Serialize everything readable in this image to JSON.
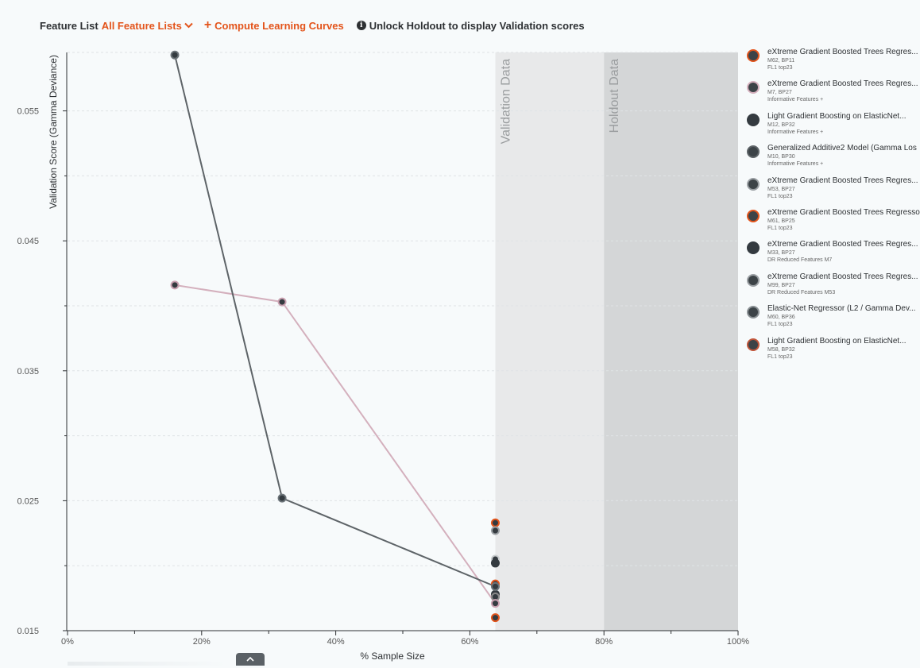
{
  "toolbar": {
    "feature_list_label": "Feature List",
    "feature_list_value": "All Feature Lists",
    "compute_label": "Compute Learning Curves",
    "unlock_label": "Unlock Holdout to display Validation scores"
  },
  "chart_data": {
    "type": "line",
    "ylabel": "Validation Score (Gamma Deviance)",
    "xlabel": "% Sample Size",
    "x_ticks": [
      "0%",
      "20%",
      "40%",
      "60%",
      "80%",
      "100%"
    ],
    "y_ticks": [
      "0.015",
      "0.025",
      "0.035",
      "0.045",
      "0.055"
    ],
    "xlim": [
      0,
      100
    ],
    "ylim": [
      0.015,
      0.0595
    ],
    "regions": [
      {
        "label": "Validation Data",
        "from": 63.8,
        "to": 80,
        "color": "#e8e9ea"
      },
      {
        "label": "Holdout Data",
        "from": 80,
        "to": 100,
        "color": "#d4d6d7"
      }
    ],
    "series": [
      {
        "name": "M7",
        "line_color": "#d4b0bd",
        "ring": "#c9a0b0",
        "points": [
          [
            16,
            0.0416
          ],
          [
            32,
            0.0403
          ],
          [
            63.8,
            0.0171
          ]
        ]
      },
      {
        "name": "M12",
        "line_color": "#5e6468",
        "ring": "#6b7378",
        "points": [
          [
            16,
            0.0593
          ],
          [
            32,
            0.0252
          ],
          [
            63.8,
            0.0184
          ]
        ]
      }
    ],
    "endpoints": [
      {
        "x": 63.8,
        "y": 0.0233,
        "ring": "#e3541b"
      },
      {
        "x": 63.8,
        "y": 0.0227,
        "ring": "#9a9fa3"
      },
      {
        "x": 63.8,
        "y": 0.0205,
        "ring": "#c8ccce"
      },
      {
        "x": 63.8,
        "y": 0.0202,
        "ring": "#343b40"
      },
      {
        "x": 63.8,
        "y": 0.0186,
        "ring": "#e3541b"
      },
      {
        "x": 63.8,
        "y": 0.0178,
        "ring": "#343b40"
      },
      {
        "x": 63.8,
        "y": 0.0176,
        "ring": "#888"
      },
      {
        "x": 63.8,
        "y": 0.016,
        "ring": "#e3541b"
      }
    ]
  },
  "legend": [
    {
      "title": "eXtreme Gradient Boosted Trees Regres...",
      "sub1": "M62, BP11",
      "sub2": "FL1 top23",
      "ring": "#e3541b",
      "fill": "#3c4347"
    },
    {
      "title": "eXtreme Gradient Boosted Trees Regres...",
      "sub1": "M7, BP27",
      "sub2": "Informative Features +",
      "ring": "#d4b0bd",
      "fill": "#3c4347"
    },
    {
      "title": "Light Gradient Boosting on ElasticNet...",
      "sub1": "M12, BP32",
      "sub2": "Informative Features +",
      "ring": "#343b40",
      "fill": "#343b40"
    },
    {
      "title": "Generalized Additive2 Model (Gamma Los",
      "sub1": "M10, BP30",
      "sub2": "Informative Features +",
      "ring": "#5e6468",
      "fill": "#3c4347"
    },
    {
      "title": "eXtreme Gradient Boosted Trees Regres...",
      "sub1": "M53, BP27",
      "sub2": "FL1 top23",
      "ring": "#9a9fa3",
      "fill": "#3c4347"
    },
    {
      "title": "eXtreme Gradient Boosted Trees Regresso",
      "sub1": "M61, BP25",
      "sub2": "FL1 top23",
      "ring": "#e3541b",
      "fill": "#3c4347"
    },
    {
      "title": "eXtreme Gradient Boosted Trees Regres...",
      "sub1": "M33, BP27",
      "sub2": "DR Reduced Features M7",
      "ring": "#343b40",
      "fill": "#343b40"
    },
    {
      "title": "eXtreme Gradient Boosted Trees Regres...",
      "sub1": "M99, BP27",
      "sub2": "DR Reduced Features M53",
      "ring": "#9a9fa3",
      "fill": "#3c4347"
    },
    {
      "title": "Elastic-Net Regressor (L2 / Gamma Dev...",
      "sub1": "M60, BP36",
      "sub2": "FL1 top23",
      "ring": "#8a9094",
      "fill": "#3c4347"
    },
    {
      "title": "Light Gradient Boosting on ElasticNet...",
      "sub1": "M58, BP32",
      "sub2": "FL1 top23",
      "ring": "#c0553a",
      "fill": "#3c4347"
    }
  ],
  "bottom_tab_icon": "chevron-up-icon"
}
